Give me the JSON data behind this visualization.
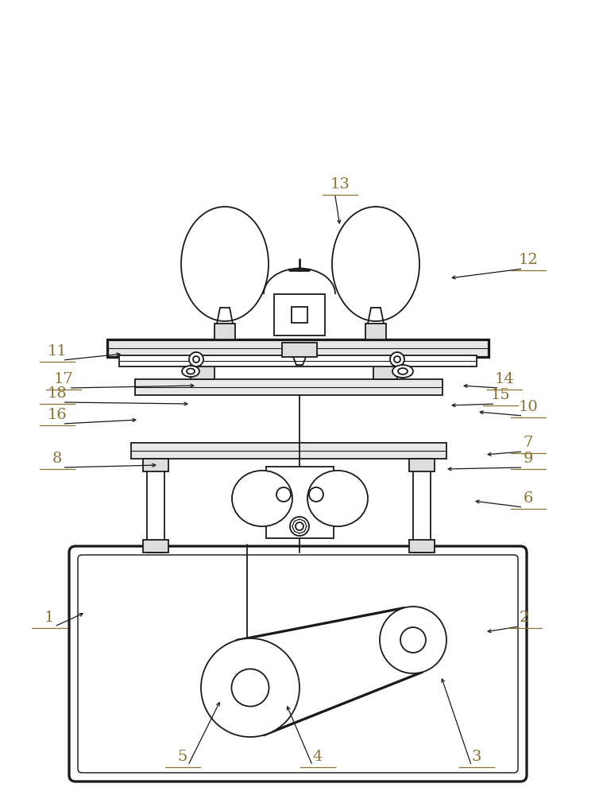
{
  "bg_color": "#ffffff",
  "line_color": "#1a1a1a",
  "label_color": "#8B7030",
  "lw": 1.3,
  "fig_width": 7.54,
  "fig_height": 10.0
}
